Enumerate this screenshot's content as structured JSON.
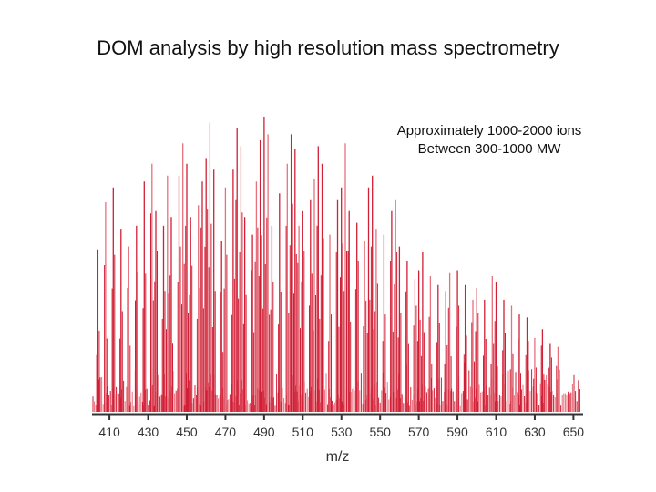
{
  "chart_data": {
    "type": "bar",
    "title": "DOM analysis by high resolution mass spectrometry",
    "xlabel": "m/z",
    "ylabel": "",
    "xlim": [
      401,
      655
    ],
    "ylim": [
      0,
      100
    ],
    "x_ticks": [
      410,
      430,
      450,
      470,
      490,
      510,
      530,
      550,
      570,
      590,
      610,
      630,
      650
    ],
    "grid": false,
    "legend": "none",
    "colors": {
      "bar": "#d11f35",
      "bar_light": "#e8707d",
      "axis": "#333333"
    },
    "annotation": {
      "lines": [
        "Approximately 1000-2000 ions",
        "Between 300-1000 MW"
      ],
      "position": "top-right"
    },
    "series": [
      {
        "values": [
          [
            404.0,
            55
          ],
          [
            408.0,
            71
          ],
          [
            412.0,
            76
          ],
          [
            416.0,
            62
          ],
          [
            420.0,
            56
          ],
          [
            424.0,
            63
          ],
          [
            428.0,
            78
          ],
          [
            432.0,
            84
          ],
          [
            434.0,
            68
          ],
          [
            438.0,
            63
          ],
          [
            440.0,
            80
          ],
          [
            442.0,
            66
          ],
          [
            446.0,
            80
          ],
          [
            448.0,
            91
          ],
          [
            450.0,
            84
          ],
          [
            452.0,
            66
          ],
          [
            456.0,
            70
          ],
          [
            458.0,
            78
          ],
          [
            460.0,
            86
          ],
          [
            462.0,
            98
          ],
          [
            464.0,
            82
          ],
          [
            468.0,
            58
          ],
          [
            470.0,
            76
          ],
          [
            474.0,
            82
          ],
          [
            476.0,
            96
          ],
          [
            478.0,
            90
          ],
          [
            480.0,
            66
          ],
          [
            484.0,
            60
          ],
          [
            486.0,
            78
          ],
          [
            488.0,
            92
          ],
          [
            490.0,
            100
          ],
          [
            492.0,
            94
          ],
          [
            494.0,
            63
          ],
          [
            498.0,
            74
          ],
          [
            502.0,
            84
          ],
          [
            504.0,
            94
          ],
          [
            506.0,
            89
          ],
          [
            508.0,
            63
          ],
          [
            510.0,
            68
          ],
          [
            514.0,
            72
          ],
          [
            516.0,
            79
          ],
          [
            518.0,
            90
          ],
          [
            520.0,
            84
          ],
          [
            524.0,
            60
          ],
          [
            528.0,
            72
          ],
          [
            530.0,
            76
          ],
          [
            532.0,
            91
          ],
          [
            534.0,
            68
          ],
          [
            538.0,
            64
          ],
          [
            542.0,
            58
          ],
          [
            544.0,
            76
          ],
          [
            546.0,
            80
          ],
          [
            548.0,
            62
          ],
          [
            552.0,
            60
          ],
          [
            556.0,
            68
          ],
          [
            558.0,
            72
          ],
          [
            560.0,
            56
          ],
          [
            564.0,
            51
          ],
          [
            568.0,
            45
          ],
          [
            570.0,
            48
          ],
          [
            572.0,
            54
          ],
          [
            576.0,
            46
          ],
          [
            580.0,
            43
          ],
          [
            584.0,
            41
          ],
          [
            586.0,
            47
          ],
          [
            590.0,
            48
          ],
          [
            594.0,
            43
          ],
          [
            598.0,
            38
          ],
          [
            600.0,
            42
          ],
          [
            604.0,
            38
          ],
          [
            608.0,
            46
          ],
          [
            610.0,
            44
          ],
          [
            614.0,
            38
          ],
          [
            618.0,
            36
          ],
          [
            622.0,
            33
          ],
          [
            626.0,
            32
          ],
          [
            630.0,
            25
          ],
          [
            634.0,
            28
          ],
          [
            638.0,
            23
          ],
          [
            642.0,
            22
          ]
        ]
      }
    ]
  }
}
